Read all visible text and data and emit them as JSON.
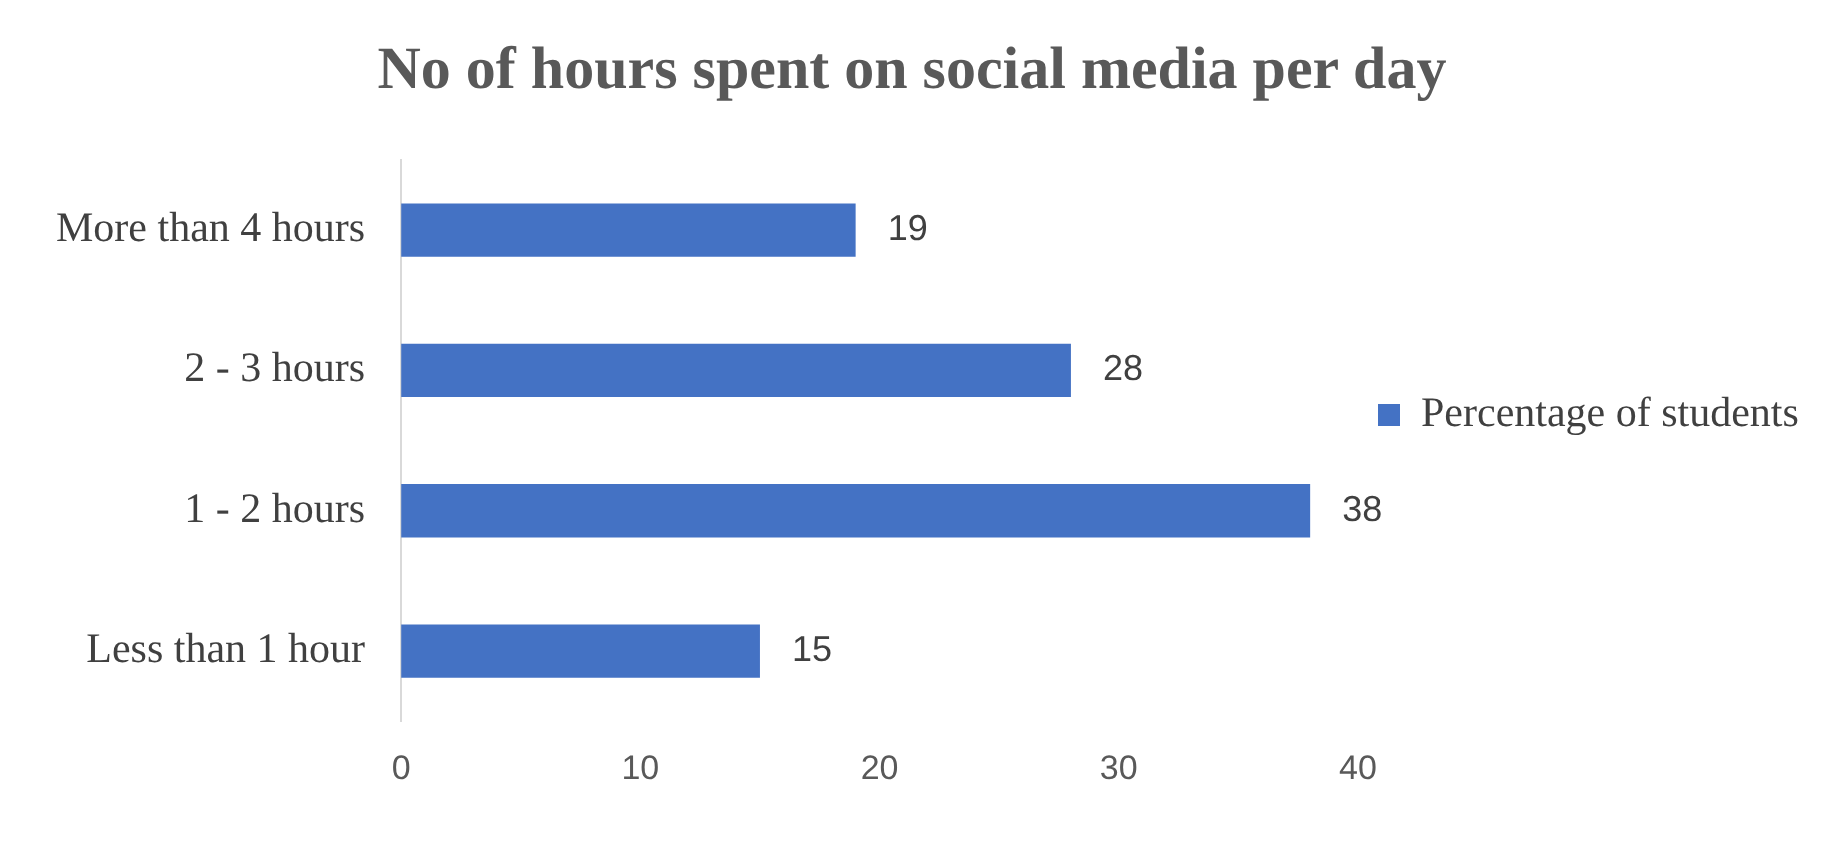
{
  "chart_data": {
    "type": "bar",
    "orientation": "horizontal",
    "title": "No of hours spent on social media per day",
    "categories": [
      "More than 4 hours",
      "2 - 3 hours",
      "1 - 2 hours",
      "Less than 1 hour"
    ],
    "series": [
      {
        "name": "Percentage of students",
        "color": "#4472c4",
        "values": [
          19,
          28,
          38,
          15
        ]
      }
    ],
    "xlim": [
      0,
      40
    ],
    "xticks": [
      0,
      10,
      20,
      30,
      40
    ],
    "grid": false,
    "legend": "right",
    "data_labels": true
  }
}
